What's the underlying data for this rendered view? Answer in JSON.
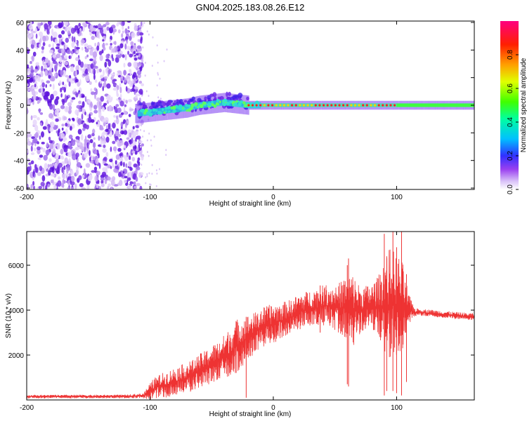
{
  "title": "GN04.2025.183.08.26.E12",
  "chart_data": [
    {
      "type": "heatmap",
      "xlabel": "Height of straight line (km)",
      "ylabel": "Frequency (Hz)",
      "xlim": [
        -200,
        163
      ],
      "ylim": [
        -61,
        61
      ],
      "xticks": [
        -200,
        -100,
        0,
        100
      ],
      "yticks": [
        -60,
        -40,
        -20,
        0,
        20,
        40,
        60
      ],
      "ridge": {
        "x": [
          -110,
          -100,
          -90,
          -80,
          -70,
          -60,
          -50,
          -40,
          -30,
          -20,
          -10,
          0,
          20,
          40,
          60,
          80,
          100,
          120,
          140,
          163
        ],
        "freq_hz": [
          -6,
          -5,
          -4,
          -3,
          -2,
          0,
          1,
          2,
          1,
          0,
          0,
          0,
          0,
          0,
          0,
          0,
          0,
          0,
          0,
          0
        ]
      },
      "noise_region": {
        "x_from": -200,
        "x_to": -110
      },
      "colorbar": {
        "label": "Normalized spectral amplitude",
        "range": [
          0,
          1
        ],
        "ticks": [
          0.0,
          0.2,
          0.4,
          0.6,
          0.8
        ],
        "colors": [
          "#ffffff",
          "#c9a0f0",
          "#8a2be2",
          "#2a2aff",
          "#00c8ff",
          "#00ff80",
          "#80ff00",
          "#ffff00",
          "#ff8000",
          "#ff0000",
          "#ff0080"
        ]
      }
    },
    {
      "type": "line",
      "xlabel": "Height of straight line (km)",
      "ylabel": "SNR (10 * v/v)",
      "xlim": [
        -200,
        163
      ],
      "ylim": [
        0,
        7500
      ],
      "xticks": [
        -200,
        -100,
        0,
        100
      ],
      "yticks": [
        2000,
        4000,
        6000
      ],
      "color": "#ee3333",
      "series": [
        {
          "x": [
            -200,
            -180,
            -160,
            -140,
            -120,
            -105,
            -100,
            -95,
            -90,
            -85,
            -80,
            -75,
            -70,
            -65,
            -60,
            -55,
            -50,
            -45,
            -40,
            -35,
            -30,
            -25,
            -20,
            -15,
            -10,
            -5,
            0,
            5,
            10,
            15,
            20,
            25,
            30,
            35,
            40,
            45,
            50,
            55,
            60,
            65,
            70,
            75,
            80,
            85,
            90,
            95,
            100,
            105,
            110,
            115,
            120,
            130,
            140,
            150,
            163
          ],
          "y": [
            150,
            150,
            150,
            150,
            160,
            180,
            400,
            550,
            650,
            700,
            800,
            900,
            1000,
            1100,
            1300,
            1400,
            1600,
            1700,
            1900,
            2100,
            2400,
            2600,
            2800,
            3000,
            3200,
            3300,
            3400,
            3500,
            3600,
            3700,
            3900,
            4000,
            4100,
            4100,
            4200,
            4200,
            4100,
            4100,
            4100,
            4000,
            4000,
            4100,
            4100,
            4200,
            4200,
            4200,
            4200,
            4100,
            4000,
            3900,
            3900,
            3850,
            3800,
            3750,
            3700
          ],
          "spread": [
            80,
            80,
            80,
            80,
            80,
            120,
            400,
            500,
            550,
            600,
            650,
            650,
            700,
            700,
            750,
            800,
            850,
            900,
            1000,
            1100,
            1200,
            1100,
            1000,
            900,
            900,
            900,
            900,
            800,
            800,
            800,
            800,
            800,
            800,
            900,
            900,
            1000,
            1000,
            1200,
            1500,
            1600,
            1100,
            1000,
            1100,
            1300,
            2200,
            2600,
            2400,
            2000,
            700,
            180,
            160,
            160,
            160,
            160,
            160
          ]
        }
      ],
      "spikes": [
        {
          "x": -22,
          "y_low": 100,
          "y_high": 3700
        },
        {
          "x": 38,
          "y_low": 3000,
          "y_high": 5100
        },
        {
          "x": 60,
          "y_low": 700,
          "y_high": 6000
        },
        {
          "x": 61,
          "y_low": 600,
          "y_high": 6300
        },
        {
          "x": 90,
          "y_low": 200,
          "y_high": 7400
        },
        {
          "x": 92,
          "y_low": 400,
          "y_high": 6400
        },
        {
          "x": 97,
          "y_low": 400,
          "y_high": 7500
        },
        {
          "x": 100,
          "y_low": 300,
          "y_high": 6800
        },
        {
          "x": 104,
          "y_low": 200,
          "y_high": 7500
        },
        {
          "x": 108,
          "y_low": 800,
          "y_high": 5600
        }
      ]
    }
  ]
}
